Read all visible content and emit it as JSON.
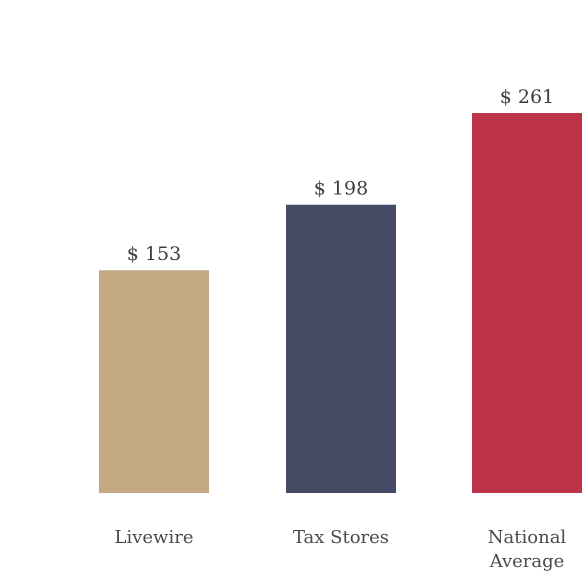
{
  "chart_data": {
    "type": "bar",
    "categories": [
      "Livewire",
      "Tax Stores",
      "National\nAverage"
    ],
    "values": [
      153,
      198,
      261
    ],
    "value_labels": [
      "$ 153",
      "$ 198",
      "$ 261"
    ],
    "colors": [
      "#c4a883",
      "#464b65",
      "#bd3349"
    ],
    "ylim": [
      0,
      290
    ],
    "grid": false,
    "legend": "none"
  }
}
